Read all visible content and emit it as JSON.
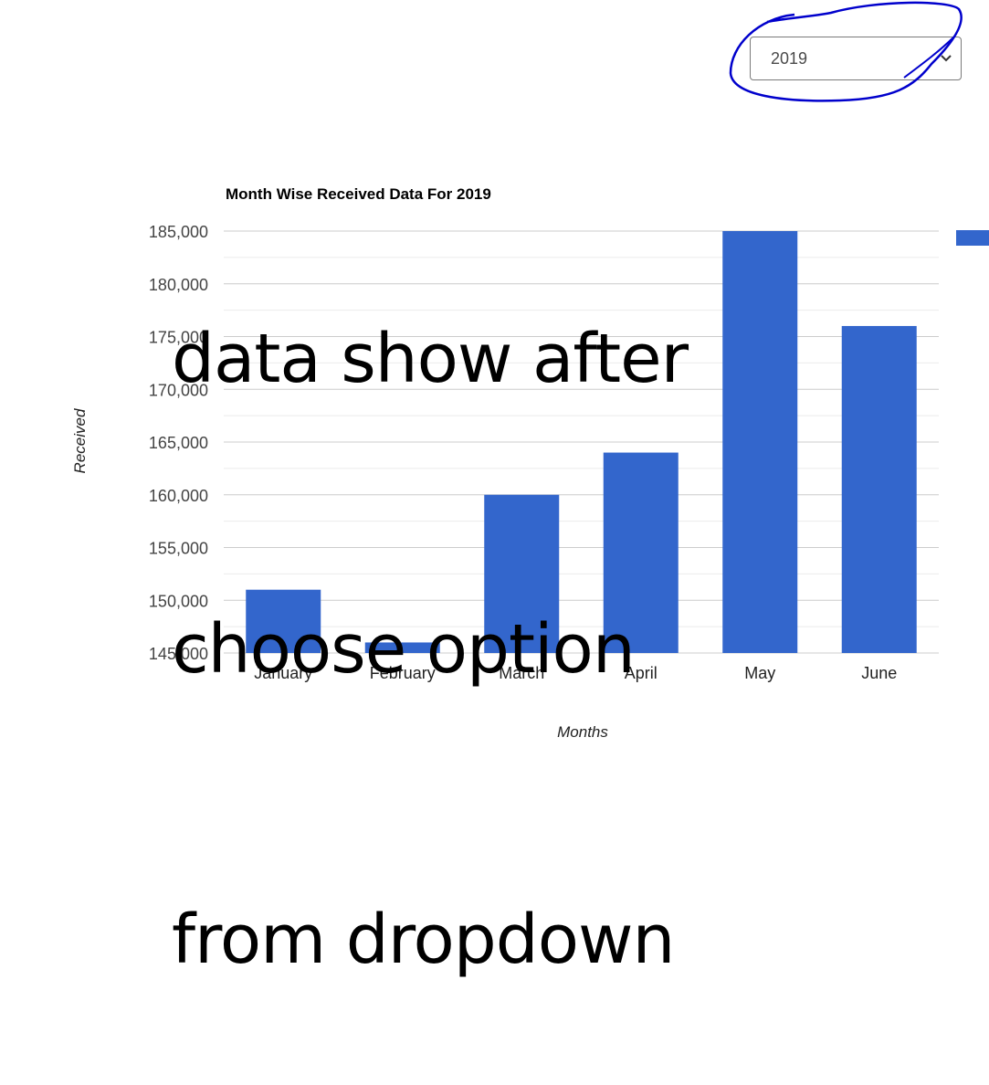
{
  "filter": {
    "selected_year": "2019"
  },
  "annotation": {
    "lines": [
      "data show after",
      "choose option",
      "from dropdown"
    ],
    "color": "#0000cc"
  },
  "chart_data": {
    "type": "bar",
    "title": "Month Wise Received Data For 2019",
    "xlabel": "Months",
    "ylabel": "Received",
    "categories": [
      "January",
      "February",
      "March",
      "April",
      "May",
      "June"
    ],
    "series": [
      {
        "values": [
          151000,
          146000,
          160000,
          164000,
          185000,
          176000
        ],
        "color": "#3366cc"
      }
    ],
    "ylim": [
      145000,
      185000
    ],
    "yticks": [
      "145,000",
      "150,000",
      "155,000",
      "160,000",
      "165,000",
      "170,000",
      "175,000",
      "180,000",
      "185,000"
    ],
    "grid": true,
    "legend": "right"
  }
}
